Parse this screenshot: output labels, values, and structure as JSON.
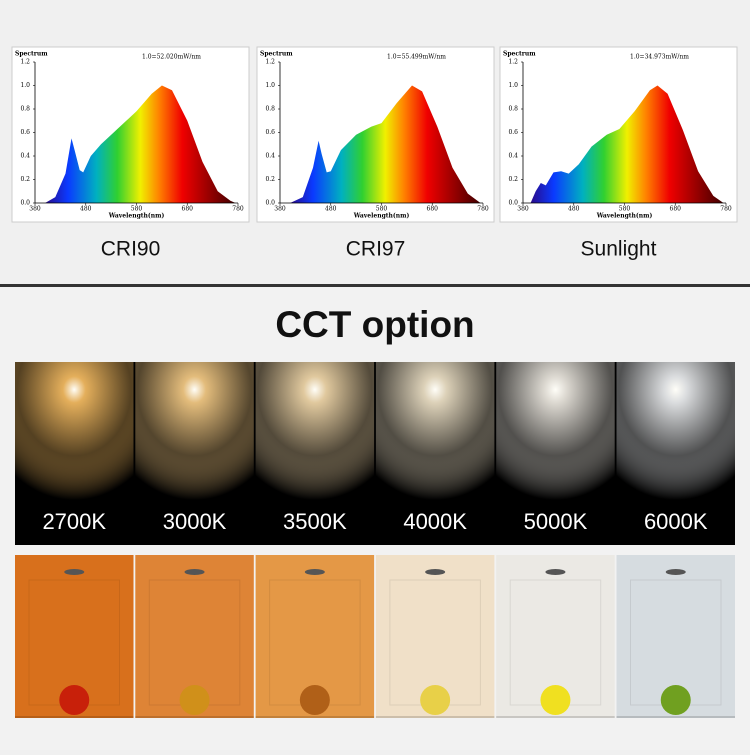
{
  "spectra": [
    {
      "title": "Spectrum",
      "scale_note": "1.0=52.020mW/nm",
      "x_label": "Wavelength(nm)",
      "yticks": [
        {
          "value": 0,
          "label": "0.0"
        },
        {
          "value": 0.2,
          "label": "0.2"
        },
        {
          "value": 0.4,
          "label": "0.4"
        },
        {
          "value": 0.6,
          "label": "0.6"
        },
        {
          "value": 0.8,
          "label": "0.8"
        },
        {
          "value": 1,
          "label": "1.0"
        },
        {
          "value": 1.2,
          "label": "1.2"
        }
      ],
      "xticks": [
        380,
        480,
        580,
        680,
        780
      ],
      "caption": "CRI90"
    },
    {
      "title": "Spectrum",
      "scale_note": "1.0=55.499mW/nm",
      "x_label": "Wavelength(nm)",
      "yticks": [
        {
          "value": 0,
          "label": "0.0"
        },
        {
          "value": 0.2,
          "label": "0.2"
        },
        {
          "value": 0.4,
          "label": "0.4"
        },
        {
          "value": 0.6,
          "label": "0.6"
        },
        {
          "value": 0.8,
          "label": "0.8"
        },
        {
          "value": 1,
          "label": "1.0"
        },
        {
          "value": 1.2,
          "label": "1.2"
        }
      ],
      "xticks": [
        380,
        480,
        580,
        680,
        780
      ],
      "caption": "CRI97"
    },
    {
      "title": "Spectrum",
      "scale_note": "1.0=34.973mW/nm",
      "x_label": "Wavelength(nm)",
      "yticks": [
        {
          "value": 0,
          "label": "0.0"
        },
        {
          "value": 0.2,
          "label": "0.2"
        },
        {
          "value": 0.4,
          "label": "0.4"
        },
        {
          "value": 0.6,
          "label": "0.6"
        },
        {
          "value": 0.8,
          "label": "0.8"
        },
        {
          "value": 1,
          "label": "1.0"
        },
        {
          "value": 1.2,
          "label": "1.2"
        }
      ],
      "xticks": [
        380,
        480,
        580,
        680,
        780
      ],
      "caption": "Sunlight"
    }
  ],
  "cct": {
    "title": "CCT option",
    "options": [
      "2700K",
      "3000K",
      "3500K",
      "4000K",
      "5000K",
      "6000K"
    ]
  }
}
